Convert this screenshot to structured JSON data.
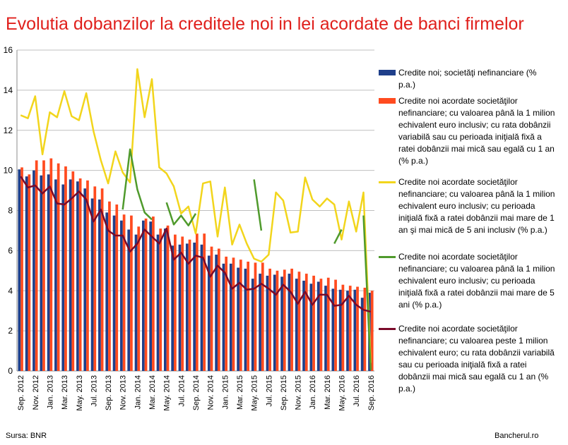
{
  "title": "Evolutia dobanzilor la creditele noi in lei acordate de banci firmelor",
  "source": "Sursa: BNR",
  "brand": "Bancherul.ro",
  "colors": {
    "s1": "#1f3f8a",
    "s2": "#ff4b1f",
    "s3": "#f2d51c",
    "s4": "#4f9a2c",
    "s5": "#7a0a2a"
  },
  "chart_data": {
    "type": "bar",
    "ylim": [
      0,
      16
    ],
    "yticks": [
      0,
      2,
      4,
      6,
      8,
      10,
      12,
      14,
      16
    ],
    "grid": true,
    "legend_position": "right",
    "months": [
      "Sep. 2012",
      "Oct. 2012",
      "Nov. 2012",
      "Dec. 2012",
      "Jan. 2013",
      "Feb. 2013",
      "Mar. 2013",
      "Apr. 2013",
      "May. 2013",
      "Jun. 2013",
      "Jul. 2013",
      "Aug. 2013",
      "Sep. 2013",
      "Oct. 2013",
      "Nov. 2013",
      "Dec. 2013",
      "Jan. 2014",
      "Feb. 2014",
      "Mar. 2014",
      "Apr. 2014",
      "May. 2014",
      "Jun. 2014",
      "Jul. 2014",
      "Aug. 2014",
      "Sep. 2014",
      "Oct. 2014",
      "Nov. 2014",
      "Dec. 2014",
      "Jan. 2015",
      "Feb. 2015",
      "Mar. 2015",
      "Apr. 2015",
      "May. 2015",
      "Jun. 2015",
      "Jul. 2015",
      "Aug. 2015",
      "Sep. 2015",
      "Oct. 2015",
      "Nov. 2015",
      "Dec. 2015",
      "Jan. 2016",
      "Feb. 2016",
      "Mar. 2016",
      "Apr. 2016",
      "May. 2016",
      "Jun. 2016",
      "Jul. 2016",
      "Aug. 2016",
      "Sep. 2016"
    ],
    "tick_labels": [
      "Sep. 2012",
      "Nov. 2012",
      "Jan. 2013",
      "Mar. 2013",
      "May. 2013",
      "Jul. 2013",
      "Sep. 2013",
      "Nov. 2013",
      "Jan. 2014",
      "Mar. 2014",
      "May. 2014",
      "Jul. 2014",
      "Sep. 2014",
      "Nov. 2014",
      "Jan. 2015",
      "Mar. 2015",
      "May. 2015",
      "Jul. 2015",
      "Sep. 2015",
      "Nov. 2015",
      "Jan. 2016",
      "Mar. 2016",
      "May. 2016",
      "Jul. 2016",
      "Sep. 2016"
    ],
    "series": [
      {
        "name": "Credite noi; societăţi nefinanciare (% p.a.)",
        "kind": "bar",
        "color": "#1f3f8a",
        "values": [
          10.05,
          9.7,
          10.0,
          9.75,
          9.8,
          9.55,
          9.3,
          9.55,
          9.45,
          9.1,
          8.6,
          8.55,
          7.9,
          7.75,
          7.5,
          7.05,
          6.8,
          7.5,
          7.45,
          6.8,
          7.1,
          6.25,
          6.3,
          6.35,
          6.4,
          6.3,
          5.75,
          5.8,
          5.35,
          5.35,
          5.15,
          5.1,
          4.6,
          4.85,
          4.75,
          4.8,
          4.7,
          4.85,
          4.6,
          4.5,
          4.35,
          4.45,
          4.25,
          4.1,
          4.05,
          4.0,
          4.05,
          3.65,
          3.9
        ]
      },
      {
        "name": "Credite noi acordate societăţilor nefinanciare; cu valoarea până la 1 milion echivalent euro inclusiv; cu rata dobânzii variabilă sau cu perioada iniţială fixă a ratei dobânzii mai mică sau egală cu 1 an (% p.a.)",
        "kind": "bar",
        "color": "#ff4b1f",
        "values": [
          10.15,
          9.8,
          10.5,
          10.5,
          10.6,
          10.35,
          10.2,
          9.95,
          9.6,
          9.5,
          9.2,
          9.1,
          8.45,
          8.3,
          7.8,
          7.75,
          7.2,
          7.6,
          7.7,
          7.1,
          7.25,
          6.8,
          6.7,
          6.55,
          6.85,
          6.85,
          6.2,
          6.1,
          5.7,
          5.65,
          5.55,
          5.45,
          5.4,
          5.4,
          5.1,
          5.0,
          5.05,
          5.1,
          4.95,
          4.85,
          4.75,
          4.6,
          4.65,
          4.55,
          4.3,
          4.25,
          4.2,
          4.15,
          4.0
        ]
      },
      {
        "name": "Credite noi acordate societăţilor nefinanciare; cu valoarea până la 1 milion echivalent euro inclusiv; cu perioada iniţială fixă a ratei dobânzii mai mare de 1 an şi mai mică de 5 ani inclusiv (% p.a.)",
        "kind": "line",
        "color": "#f2d51c",
        "values": [
          12.75,
          12.6,
          13.7,
          10.8,
          12.9,
          12.65,
          13.95,
          12.7,
          12.5,
          13.85,
          11.95,
          10.5,
          9.35,
          10.95,
          9.9,
          9.4,
          15.05,
          12.65,
          14.55,
          10.15,
          9.85,
          9.2,
          7.85,
          8.2,
          6.85,
          9.35,
          9.45,
          6.7,
          9.15,
          6.3,
          7.3,
          6.35,
          5.6,
          5.45,
          5.8,
          8.9,
          8.5,
          6.9,
          6.95,
          9.65,
          8.55,
          8.2,
          8.6,
          8.3,
          6.55,
          8.45,
          6.95,
          8.9,
          0.4
        ]
      },
      {
        "name": "Credite noi acordate societăţilor nefinanciare; cu valoarea până la 1 milion echivalent euro inclusiv; cu perioada iniţială fixă a ratei dobânzii mai mare de 5 ani (% p.a.)",
        "kind": "line",
        "color": "#4f9a2c",
        "values": [
          null,
          null,
          null,
          null,
          null,
          null,
          null,
          null,
          null,
          null,
          null,
          null,
          null,
          null,
          8.05,
          11.05,
          9.05,
          7.9,
          7.55,
          null,
          8.4,
          7.3,
          7.75,
          7.25,
          7.85,
          null,
          null,
          null,
          null,
          null,
          null,
          null,
          9.55,
          7.0,
          null,
          null,
          null,
          null,
          null,
          null,
          null,
          null,
          null,
          6.35,
          7.05,
          null,
          null,
          7.75,
          0.05
        ]
      },
      {
        "name": "Credite noi acordate societăţilor nefinanciare; cu valoarea peste 1 milion echivalent euro; cu rata dobânzii variabilă sau cu perioada iniţială fixă a ratei dobânzii mai mică sau egală cu 1 an (% p.a.)",
        "kind": "line",
        "color": "#7a0a2a",
        "values": [
          9.7,
          9.15,
          9.25,
          8.85,
          9.2,
          8.35,
          8.3,
          8.6,
          8.95,
          8.55,
          7.45,
          8.05,
          7.0,
          6.75,
          6.75,
          5.95,
          6.35,
          7.05,
          6.7,
          6.35,
          7.1,
          5.55,
          5.9,
          5.35,
          5.75,
          5.65,
          4.7,
          5.25,
          4.9,
          4.1,
          4.4,
          4.05,
          4.1,
          4.35,
          4.1,
          3.8,
          4.3,
          3.95,
          3.35,
          3.95,
          3.3,
          3.8,
          3.8,
          3.25,
          3.3,
          3.75,
          3.3,
          3.05,
          2.95
        ]
      }
    ]
  }
}
